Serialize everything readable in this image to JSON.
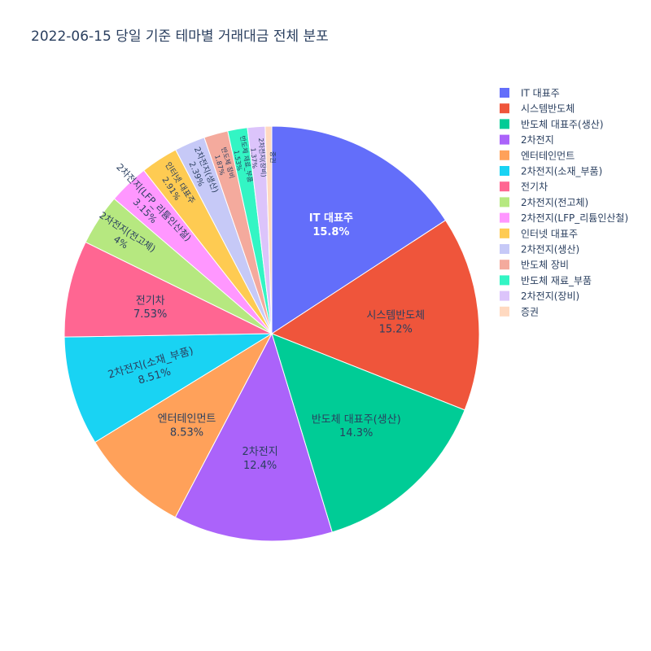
{
  "title": "2022-06-15 당일 기준 테마별 거래대금 전체 분포",
  "chart_data": {
    "type": "pie",
    "title": "2022-06-15 당일 기준 테마별 거래대금 전체 분포",
    "direction": "clockwise",
    "start": "12 o'clock",
    "legend_position": "top-right",
    "slices": [
      {
        "label": "IT 대표주",
        "percent": 15.8,
        "percent_text": "15.8%",
        "color": "#636efa"
      },
      {
        "label": "시스템반도체",
        "percent": 15.2,
        "percent_text": "15.2%",
        "color": "#EF553B"
      },
      {
        "label": "반도체 대표주(생산)",
        "percent": 14.3,
        "percent_text": "14.3%",
        "color": "#00cc96"
      },
      {
        "label": "2차전지",
        "percent": 12.4,
        "percent_text": "12.4%",
        "color": "#ab63fa"
      },
      {
        "label": "엔터테인먼트",
        "percent": 8.53,
        "percent_text": "8.53%",
        "color": "#FFA15A"
      },
      {
        "label": "2차전지(소재_부품)",
        "percent": 8.51,
        "percent_text": "8.51%",
        "color": "#19d3f3"
      },
      {
        "label": "전기차",
        "percent": 7.53,
        "percent_text": "7.53%",
        "color": "#FF6692"
      },
      {
        "label": "2차전지(전고체)",
        "percent": 4,
        "percent_text": "4%",
        "color": "#B6E880"
      },
      {
        "label": "2차전지(LFP_리튬인산철)",
        "percent": 3.15,
        "percent_text": "3.15%",
        "color": "#FF97FF"
      },
      {
        "label": "인터넷 대표주",
        "percent": 2.91,
        "percent_text": "2.91%",
        "color": "#FECB52"
      },
      {
        "label": "2차전지(생산)",
        "percent": 2.39,
        "percent_text": "2.39%",
        "color": "#c6c9f7"
      },
      {
        "label": "반도체 장비",
        "percent": 1.87,
        "percent_text": "1.87%",
        "color": "#f4aa9d"
      },
      {
        "label": "반도체 재료_부품",
        "percent": 1.53,
        "percent_text": "1.53%",
        "color": "#33f5c4"
      },
      {
        "label": "2차전지(장비)",
        "percent": 1.37,
        "percent_text": "1.37%",
        "color": "#dcc4fb"
      },
      {
        "label": "증권",
        "percent": 0.51,
        "percent_text": "",
        "color": "#ffd9c0"
      }
    ]
  }
}
